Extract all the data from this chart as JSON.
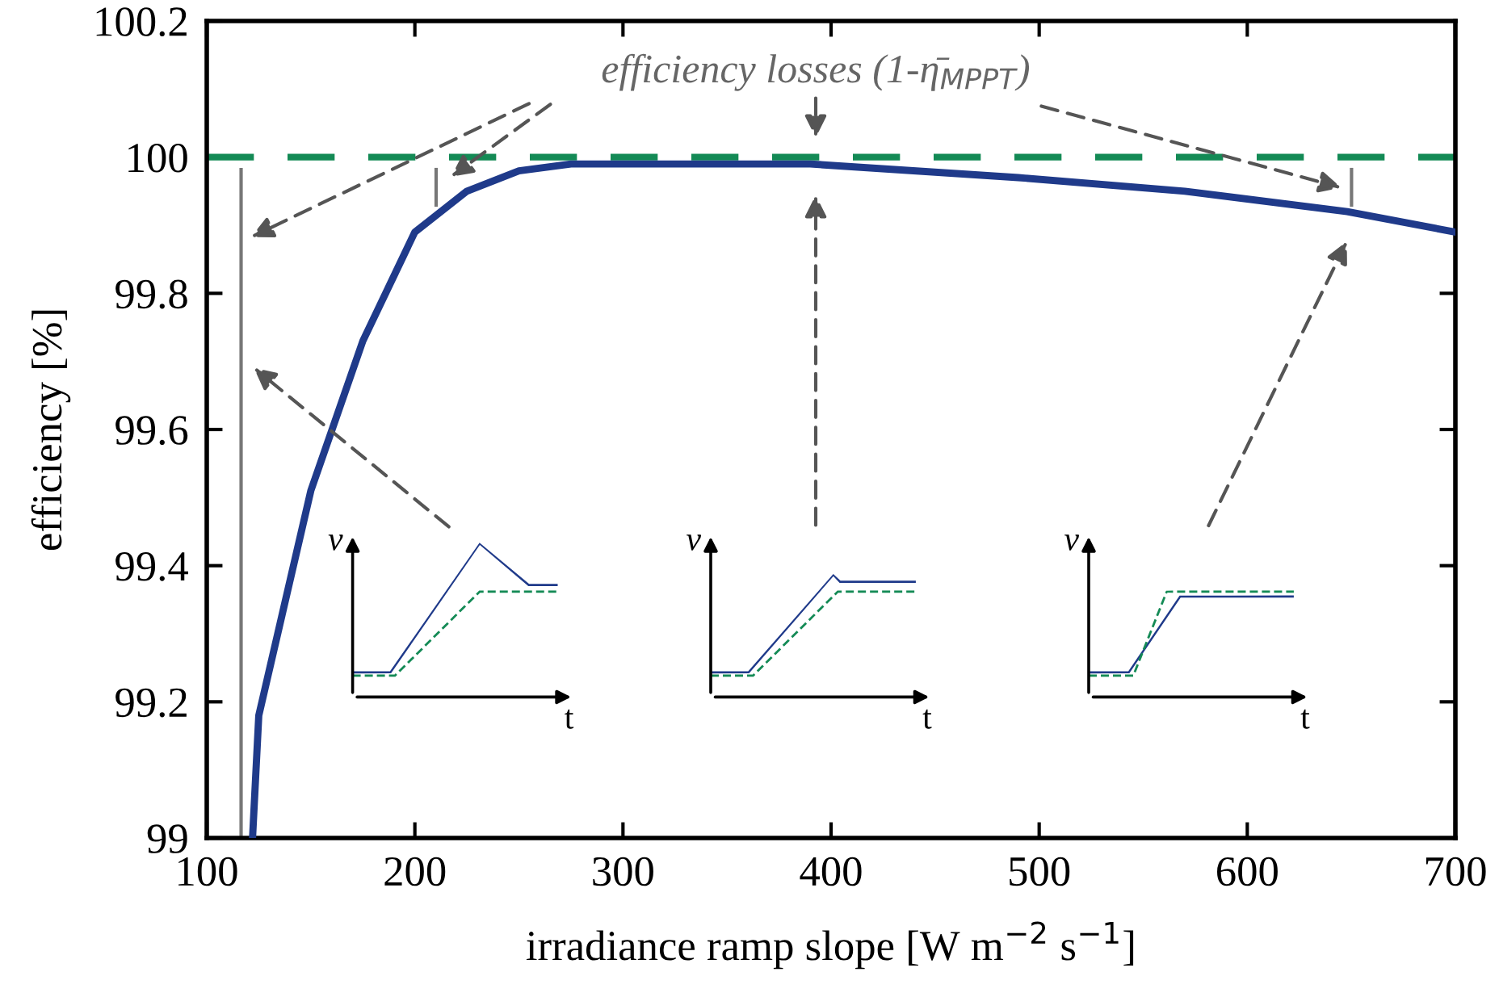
{
  "chart_data": {
    "type": "line",
    "xlabel": "irradiance ramp slope [W m$^{−2}$ s$^{−1}$]",
    "ylabel": "efficiency [%]",
    "series": [
      {
        "color": "#1f3a8a",
        "x": [
          122,
          125,
          150,
          175,
          200,
          225,
          250,
          275,
          325,
          350,
          390,
          490,
          570,
          648,
          700
        ],
        "values": [
          99.0,
          99.18,
          99.51,
          99.73,
          99.89,
          99.95,
          99.98,
          99.99,
          99.99,
          99.99,
          99.99,
          99.97,
          99.95,
          99.92,
          99.89
        ]
      }
    ],
    "ref_lines": [
      {
        "axis": "y",
        "value": 100,
        "color": "#138a55",
        "line_style": "dashed"
      },
      {
        "axis": "x",
        "value": 116.5,
        "color": "#777777",
        "line_style": "solid"
      }
    ],
    "annotations": [
      "efficiency losses (1-η̄$_{MPPT}$)",
      "v",
      "t",
      "v",
      "t",
      "v",
      "t"
    ],
    "xlim": [
      100,
      700
    ],
    "xticks": [
      100,
      200,
      300,
      400,
      500,
      600,
      700
    ],
    "ylim": [
      99,
      100.2
    ],
    "yticks": [
      99,
      99.2,
      99.4,
      99.6,
      99.8,
      100,
      100.2
    ],
    "grid": false,
    "legend": false,
    "marker": "none",
    "line_style": "solid"
  }
}
